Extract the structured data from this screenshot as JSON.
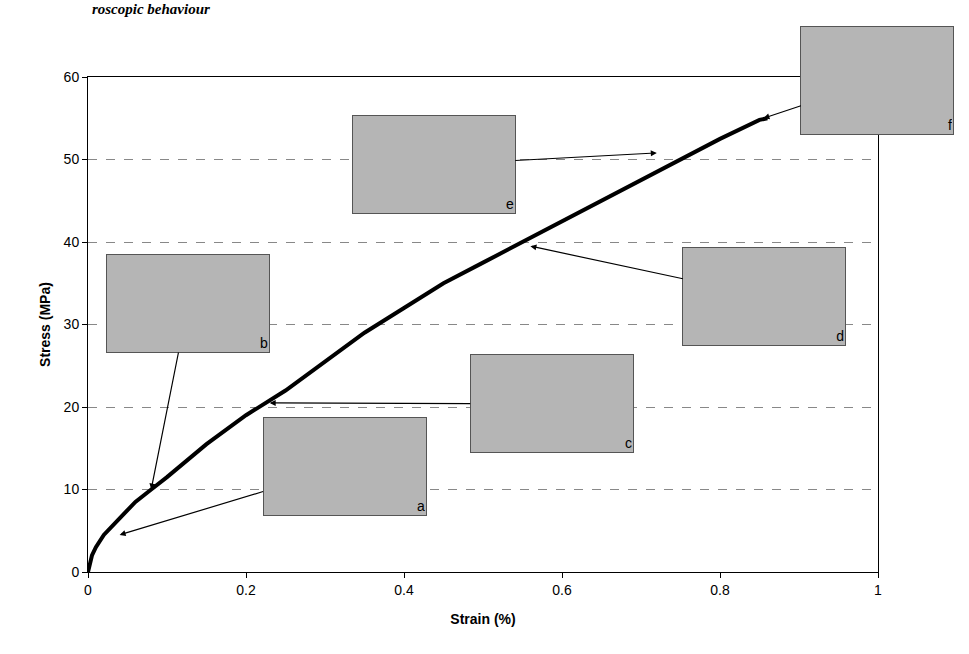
{
  "chart_data": {
    "type": "line",
    "title": "roscopic behaviour",
    "x_label": "Strain (%)",
    "y_label": "Stress (MPa)",
    "x": [
      0,
      0.005,
      0.01,
      0.02,
      0.04,
      0.06,
      0.08,
      0.1,
      0.15,
      0.2,
      0.25,
      0.3,
      0.35,
      0.4,
      0.45,
      0.5,
      0.55,
      0.6,
      0.65,
      0.7,
      0.75,
      0.8,
      0.85,
      0.86
    ],
    "values": [
      0,
      2,
      3,
      4.5,
      6.5,
      8.5,
      10,
      11.5,
      15.5,
      19,
      22,
      25.5,
      29,
      32,
      35,
      37.5,
      40,
      42.5,
      45,
      47.5,
      50,
      52.5,
      54.8,
      55
    ],
    "color": "#000000",
    "line_style": "solid",
    "xlim": [
      0,
      1
    ],
    "xticks": [
      0,
      0.2,
      0.4,
      0.6,
      0.8,
      1
    ],
    "ylim": [
      0,
      60
    ],
    "yticks": [
      0,
      10,
      20,
      30,
      40,
      50,
      60
    ],
    "grid": true,
    "annotations": [
      {
        "text": "a",
        "x": 0.04,
        "y": 4.5
      },
      {
        "text": "b",
        "x": 0.08,
        "y": 10
      },
      {
        "text": "c",
        "x": 0.23,
        "y": 20.5
      },
      {
        "text": "d",
        "x": 0.56,
        "y": 39.5
      },
      {
        "text": "e",
        "x": 0.72,
        "y": 50.8
      },
      {
        "text": "f",
        "x": 0.855,
        "y": 55
      }
    ]
  }
}
